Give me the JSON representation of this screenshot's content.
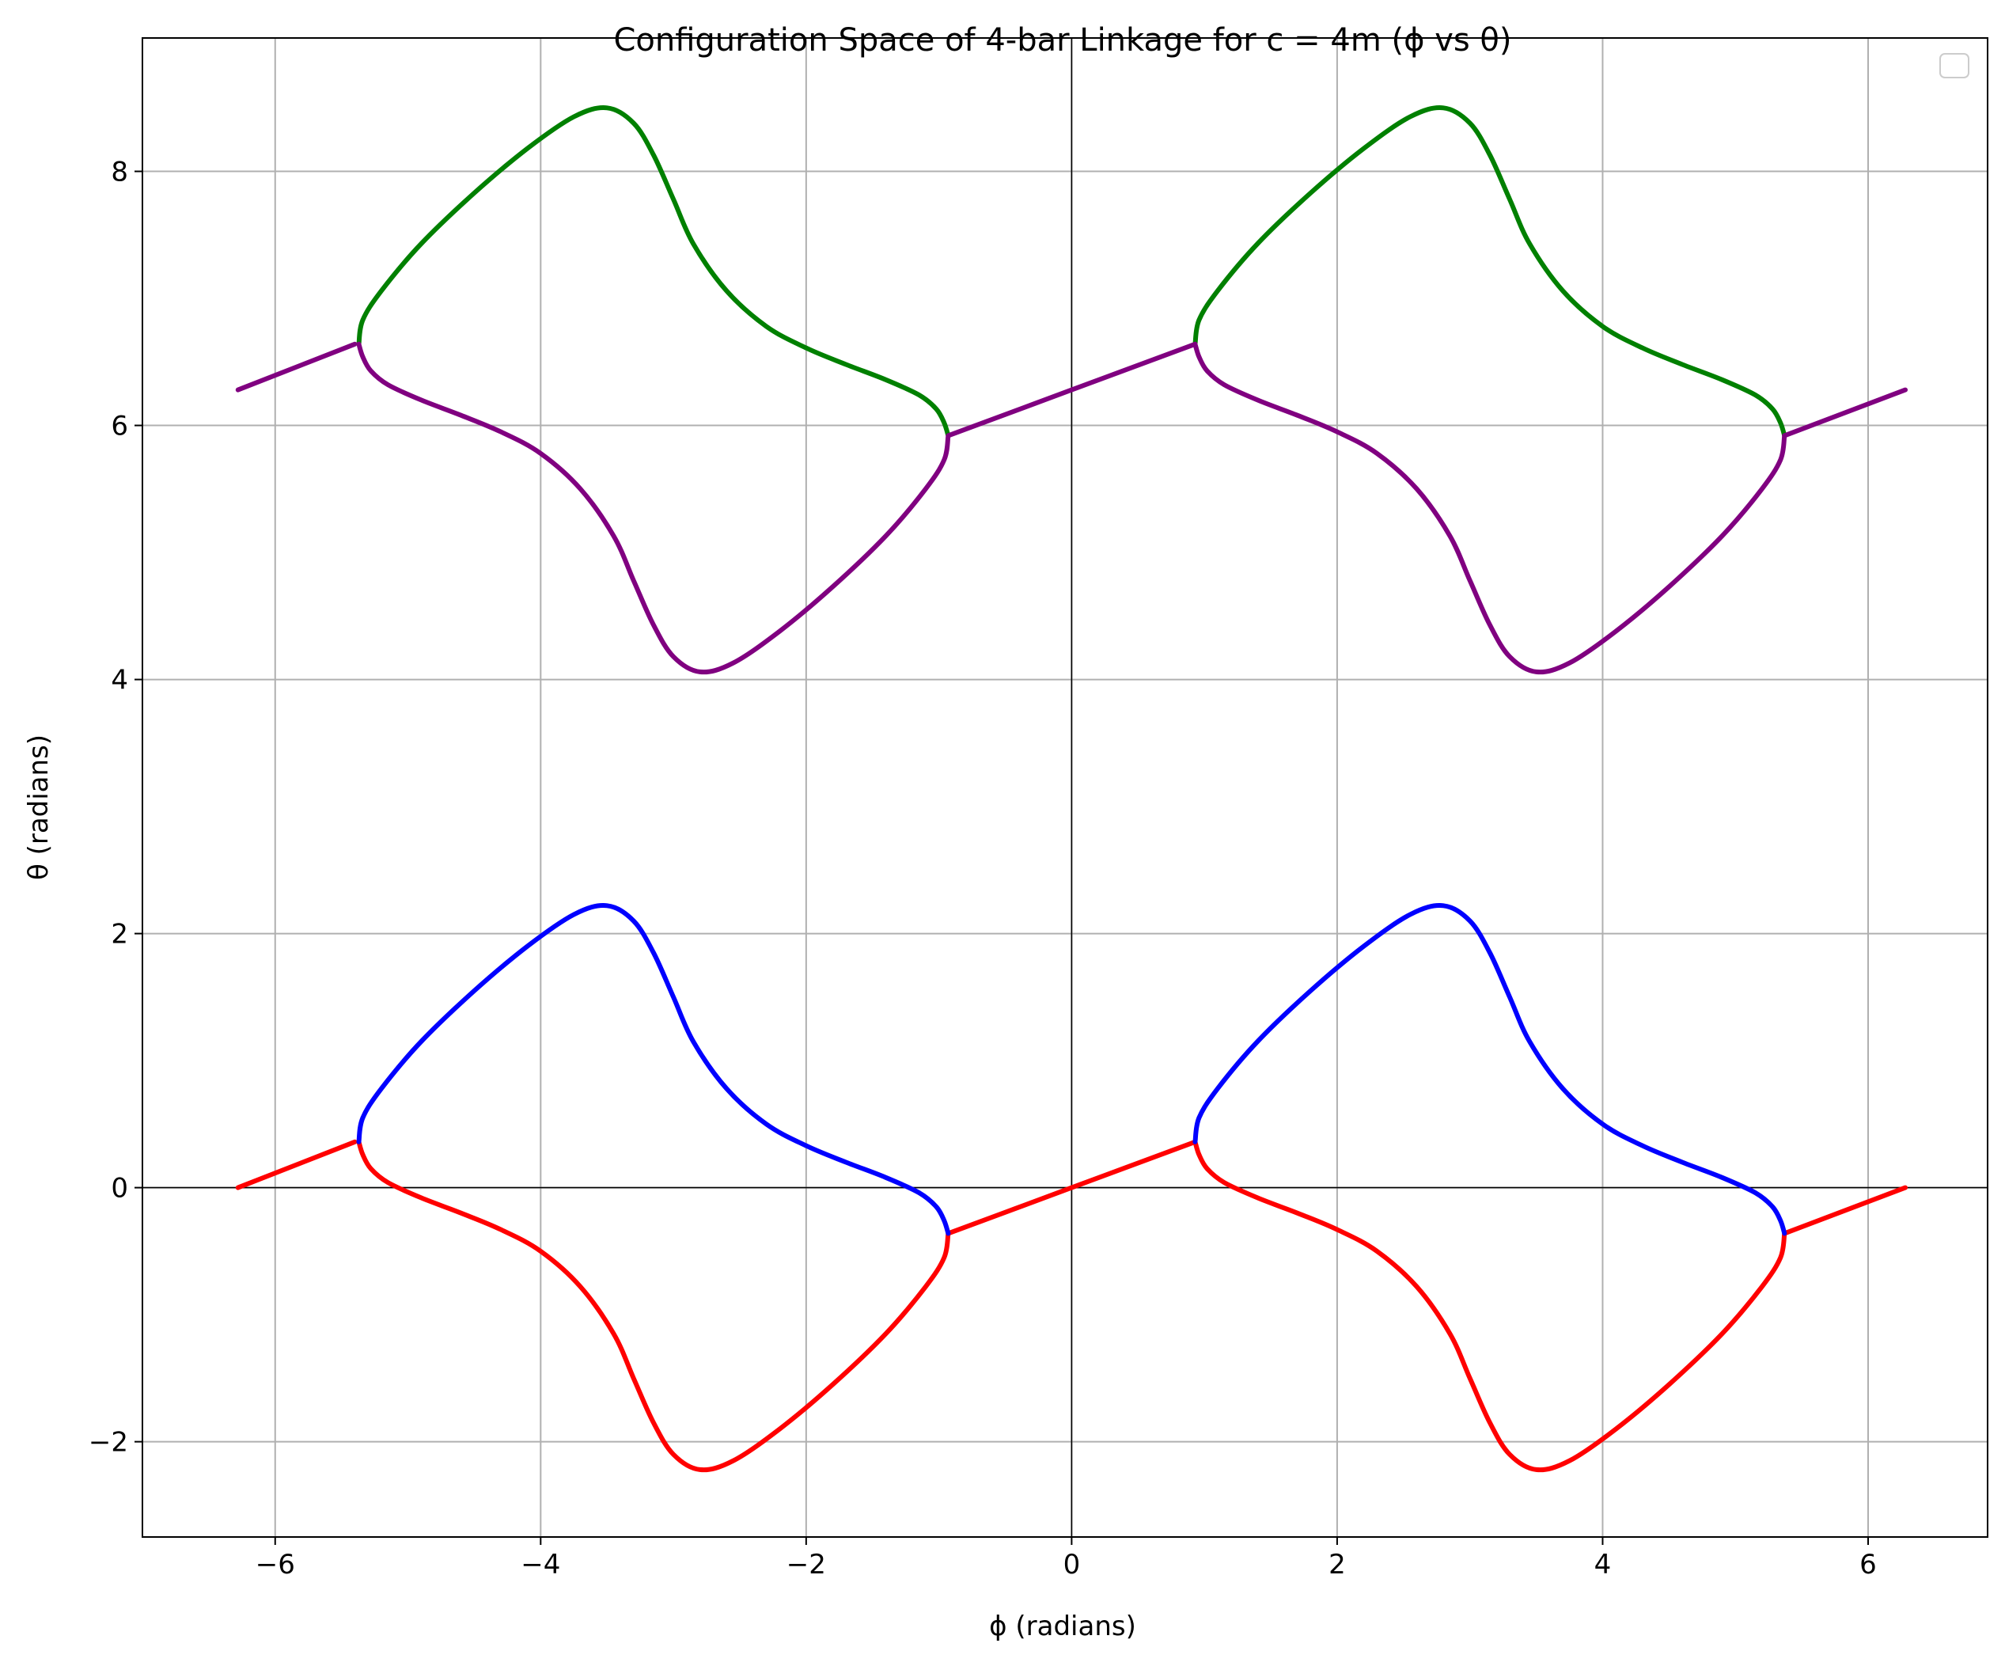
{
  "chart_data": {
    "type": "line",
    "title": "Configuration Space of 4-bar Linkage for c = 4m (ϕ vs θ)",
    "xlabel": "ϕ (radians)",
    "ylabel": "θ (radians)",
    "xlim": [
      -7.0,
      6.9
    ],
    "ylim": [
      -2.75,
      9.05
    ],
    "x_ticks": [
      -6,
      -4,
      -2,
      0,
      2,
      4,
      6
    ],
    "x_tick_labels": [
      "−6",
      "−4",
      "−2",
      "0",
      "2",
      "4",
      "6"
    ],
    "y_ticks": [
      -2,
      0,
      2,
      4,
      6,
      8
    ],
    "y_tick_labels": [
      "−2",
      "0",
      "2",
      "4",
      "6",
      "8"
    ],
    "grid": true,
    "legend": {
      "placement": "top-right",
      "entries": []
    },
    "reference_lines": {
      "x": 0,
      "y": 0,
      "color": "#000000"
    },
    "series": [
      {
        "color": "#ff0000",
        "segments": [
          [
            [
              -6.28,
              0.0
            ],
            [
              -5.4,
              0.36
            ]
          ],
          [
            [
              -5.37,
              0.36
            ],
            [
              -5.34,
              0.26
            ],
            [
              -5.28,
              0.15
            ],
            [
              -5.15,
              0.04
            ],
            [
              -4.9,
              -0.08
            ],
            [
              -4.6,
              -0.2
            ],
            [
              -4.3,
              -0.33
            ],
            [
              -4.0,
              -0.5
            ],
            [
              -3.7,
              -0.78
            ],
            [
              -3.45,
              -1.15
            ],
            [
              -3.3,
              -1.5
            ],
            [
              -3.15,
              -1.85
            ],
            [
              -3.0,
              -2.1
            ],
            [
              -2.8,
              -2.22
            ],
            [
              -2.55,
              -2.15
            ],
            [
              -2.2,
              -1.9
            ],
            [
              -1.8,
              -1.55
            ],
            [
              -1.4,
              -1.15
            ],
            [
              -1.1,
              -0.78
            ],
            [
              -0.96,
              -0.55
            ],
            [
              -0.93,
              -0.36
            ]
          ],
          [
            [
              -0.93,
              -0.36
            ],
            [
              0.0,
              0.0
            ],
            [
              0.93,
              0.36
            ]
          ],
          [
            [
              0.93,
              0.36
            ],
            [
              0.96,
              0.26
            ],
            [
              1.02,
              0.15
            ],
            [
              1.15,
              0.04
            ],
            [
              1.4,
              -0.08
            ],
            [
              1.7,
              -0.2
            ],
            [
              2.0,
              -0.33
            ],
            [
              2.3,
              -0.5
            ],
            [
              2.6,
              -0.78
            ],
            [
              2.85,
              -1.15
            ],
            [
              3.0,
              -1.5
            ],
            [
              3.15,
              -1.85
            ],
            [
              3.3,
              -2.1
            ],
            [
              3.5,
              -2.22
            ],
            [
              3.75,
              -2.15
            ],
            [
              4.1,
              -1.9
            ],
            [
              4.5,
              -1.55
            ],
            [
              4.9,
              -1.15
            ],
            [
              5.2,
              -0.78
            ],
            [
              5.34,
              -0.55
            ],
            [
              5.37,
              -0.36
            ]
          ],
          [
            [
              5.37,
              -0.36
            ],
            [
              6.28,
              0.0
            ]
          ]
        ]
      },
      {
        "color": "#0000ff",
        "segments": [
          [
            [
              -5.37,
              0.36
            ],
            [
              -5.34,
              0.55
            ],
            [
              -5.2,
              0.78
            ],
            [
              -4.9,
              1.15
            ],
            [
              -4.5,
              1.55
            ],
            [
              -4.1,
              1.9
            ],
            [
              -3.75,
              2.15
            ],
            [
              -3.5,
              2.22
            ],
            [
              -3.3,
              2.1
            ],
            [
              -3.15,
              1.85
            ],
            [
              -3.0,
              1.5
            ],
            [
              -2.85,
              1.15
            ],
            [
              -2.6,
              0.78
            ],
            [
              -2.3,
              0.5
            ],
            [
              -2.0,
              0.33
            ],
            [
              -1.7,
              0.2
            ],
            [
              -1.4,
              0.08
            ],
            [
              -1.15,
              -0.04
            ],
            [
              -1.02,
              -0.15
            ],
            [
              -0.96,
              -0.26
            ],
            [
              -0.93,
              -0.36
            ]
          ],
          [
            [
              0.93,
              0.36
            ],
            [
              0.96,
              0.55
            ],
            [
              1.1,
              0.78
            ],
            [
              1.4,
              1.15
            ],
            [
              1.8,
              1.55
            ],
            [
              2.2,
              1.9
            ],
            [
              2.55,
              2.15
            ],
            [
              2.8,
              2.22
            ],
            [
              3.0,
              2.1
            ],
            [
              3.15,
              1.85
            ],
            [
              3.3,
              1.5
            ],
            [
              3.45,
              1.15
            ],
            [
              3.7,
              0.78
            ],
            [
              4.0,
              0.5
            ],
            [
              4.3,
              0.33
            ],
            [
              4.6,
              0.2
            ],
            [
              4.9,
              0.08
            ],
            [
              5.15,
              -0.04
            ],
            [
              5.28,
              -0.15
            ],
            [
              5.34,
              -0.26
            ],
            [
              5.37,
              -0.36
            ]
          ]
        ]
      },
      {
        "color": "#008000",
        "segments": [
          [
            [
              -5.37,
              6.64
            ],
            [
              -5.34,
              6.83
            ],
            [
              -5.2,
              7.06
            ],
            [
              -4.9,
              7.43
            ],
            [
              -4.5,
              7.83
            ],
            [
              -4.1,
              8.18
            ],
            [
              -3.75,
              8.43
            ],
            [
              -3.5,
              8.5
            ],
            [
              -3.3,
              8.38
            ],
            [
              -3.15,
              8.13
            ],
            [
              -3.0,
              7.78
            ],
            [
              -2.85,
              7.43
            ],
            [
              -2.6,
              7.06
            ],
            [
              -2.3,
              6.78
            ],
            [
              -2.0,
              6.61
            ],
            [
              -1.7,
              6.48
            ],
            [
              -1.4,
              6.36
            ],
            [
              -1.15,
              6.24
            ],
            [
              -1.02,
              6.13
            ],
            [
              -0.96,
              6.02
            ],
            [
              -0.93,
              5.92
            ]
          ],
          [
            [
              0.93,
              6.64
            ],
            [
              0.96,
              6.83
            ],
            [
              1.1,
              7.06
            ],
            [
              1.4,
              7.43
            ],
            [
              1.8,
              7.83
            ],
            [
              2.2,
              8.18
            ],
            [
              2.55,
              8.43
            ],
            [
              2.8,
              8.5
            ],
            [
              3.0,
              8.38
            ],
            [
              3.15,
              8.13
            ],
            [
              3.3,
              7.78
            ],
            [
              3.45,
              7.43
            ],
            [
              3.7,
              7.06
            ],
            [
              4.0,
              6.78
            ],
            [
              4.3,
              6.61
            ],
            [
              4.6,
              6.48
            ],
            [
              4.9,
              6.36
            ],
            [
              5.15,
              6.24
            ],
            [
              5.28,
              6.13
            ],
            [
              5.34,
              6.02
            ],
            [
              5.37,
              5.92
            ]
          ]
        ]
      },
      {
        "color": "#800080",
        "segments": [
          [
            [
              -6.28,
              6.28
            ],
            [
              -5.4,
              6.64
            ]
          ],
          [
            [
              -5.37,
              6.64
            ],
            [
              -5.34,
              6.54
            ],
            [
              -5.28,
              6.43
            ],
            [
              -5.15,
              6.32
            ],
            [
              -4.9,
              6.2
            ],
            [
              -4.6,
              6.08
            ],
            [
              -4.3,
              5.95
            ],
            [
              -4.0,
              5.78
            ],
            [
              -3.7,
              5.5
            ],
            [
              -3.45,
              5.13
            ],
            [
              -3.3,
              4.78
            ],
            [
              -3.15,
              4.43
            ],
            [
              -3.0,
              4.18
            ],
            [
              -2.8,
              4.06
            ],
            [
              -2.55,
              4.13
            ],
            [
              -2.2,
              4.38
            ],
            [
              -1.8,
              4.73
            ],
            [
              -1.4,
              5.13
            ],
            [
              -1.1,
              5.5
            ],
            [
              -0.96,
              5.73
            ],
            [
              -0.93,
              5.92
            ]
          ],
          [
            [
              -0.93,
              5.92
            ],
            [
              0.0,
              6.28
            ],
            [
              0.93,
              6.64
            ]
          ],
          [
            [
              0.93,
              6.64
            ],
            [
              0.96,
              6.54
            ],
            [
              1.02,
              6.43
            ],
            [
              1.15,
              6.32
            ],
            [
              1.4,
              6.2
            ],
            [
              1.7,
              6.08
            ],
            [
              2.0,
              5.95
            ],
            [
              2.3,
              5.78
            ],
            [
              2.6,
              5.5
            ],
            [
              2.85,
              5.13
            ],
            [
              3.0,
              4.78
            ],
            [
              3.15,
              4.43
            ],
            [
              3.3,
              4.18
            ],
            [
              3.5,
              4.06
            ],
            [
              3.75,
              4.13
            ],
            [
              4.1,
              4.38
            ],
            [
              4.5,
              4.73
            ],
            [
              4.9,
              5.13
            ],
            [
              5.2,
              5.5
            ],
            [
              5.34,
              5.73
            ],
            [
              5.37,
              5.92
            ]
          ],
          [
            [
              5.37,
              5.92
            ],
            [
              6.28,
              6.28
            ]
          ]
        ]
      }
    ]
  }
}
